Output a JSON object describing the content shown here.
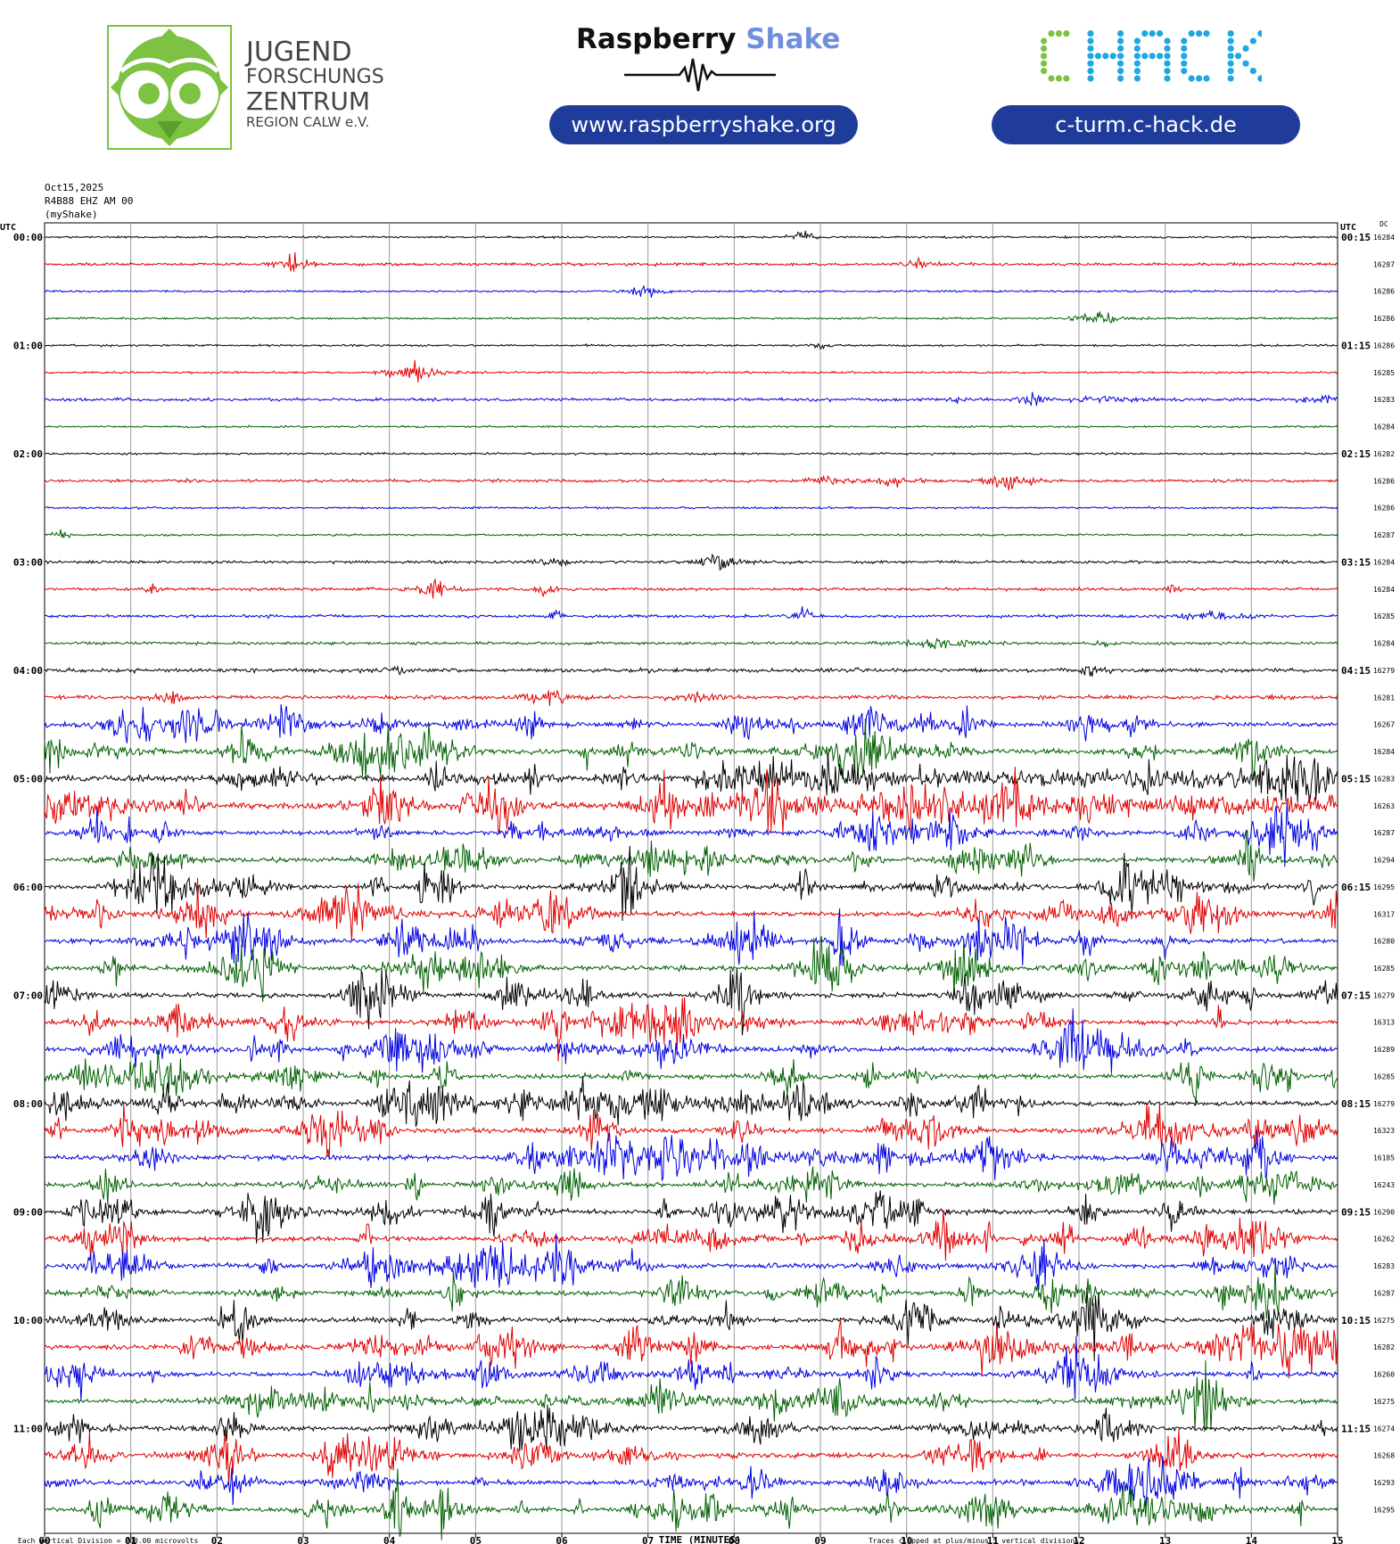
{
  "header": {
    "jfz": {
      "line1": "JUGEND",
      "line2": "FORSCHUNGS",
      "line3": "ZENTRUM",
      "line4": "REGION CALW e.V."
    },
    "raspberry": {
      "word1": "Raspberry",
      "word2": "Shake",
      "url": "www.raspberryshake.org",
      "accent_color": "#6f8fdc"
    },
    "chack": {
      "logo_text": "CHACK",
      "url": "c-turm.c-hack.de",
      "green": "#7dc242",
      "cyan": "#1ea7e1"
    },
    "pill_color": "#1f3c9a"
  },
  "station": {
    "date": "Oct15,2025",
    "channel": "R4B88 EHZ AM 00",
    "network": "(myShake)"
  },
  "chart_data": {
    "type": "line",
    "title": "",
    "left_axis_label": "UTC",
    "right_axis_label": "UTC",
    "dc_label": "DC",
    "xlabel": "TIME (MINUTES)",
    "x_ticks": [
      "00",
      "01",
      "02",
      "03",
      "04",
      "05",
      "06",
      "07",
      "08",
      "09",
      "10",
      "11",
      "12",
      "13",
      "14",
      "15"
    ],
    "xlim": [
      0,
      15
    ],
    "trace_colors": [
      "#000000",
      "#e00000",
      "#0000e0",
      "#006000"
    ],
    "grid": true,
    "left_hour_labels": [
      "00:00",
      "01:00",
      "02:00",
      "03:00",
      "04:00",
      "05:00",
      "06:00",
      "07:00",
      "08:00",
      "09:00",
      "10:00",
      "11:00"
    ],
    "right_hour_labels": [
      "00:15",
      "01:15",
      "02:15",
      "03:15",
      "04:15",
      "05:15",
      "06:15",
      "07:15",
      "08:15",
      "09:15",
      "10:15",
      "11:15"
    ],
    "dc_values": [
      16284,
      16287,
      16286,
      16286,
      16286,
      16285,
      16283,
      16284,
      16282,
      16286,
      16286,
      16287,
      16284,
      16284,
      16285,
      16284,
      16279,
      16281,
      16267,
      16284,
      16283,
      16263,
      16287,
      16294,
      16295,
      16317,
      16280,
      16285,
      16279,
      16313,
      16289,
      16285,
      16279,
      16323,
      16185,
      16243,
      16290,
      16262,
      16283,
      16287,
      16275,
      16282,
      16260,
      16275,
      16274,
      16268,
      16293,
      16295
    ],
    "trace_activity": [
      1,
      2,
      1,
      1,
      1,
      1,
      2,
      1,
      1,
      2,
      1,
      1,
      2,
      2,
      2,
      2,
      3,
      3,
      4,
      4,
      6,
      6,
      4,
      4,
      4,
      4,
      4,
      4,
      4,
      4,
      4,
      4,
      4,
      4,
      4,
      4,
      4,
      4,
      4,
      4,
      4,
      4,
      4,
      4,
      4,
      4,
      4,
      4
    ],
    "footer_left": "Each Vertical Division = 200.00 microvolts",
    "footer_right": "Traces clipped at plus/minus 5 vertical divisions"
  }
}
